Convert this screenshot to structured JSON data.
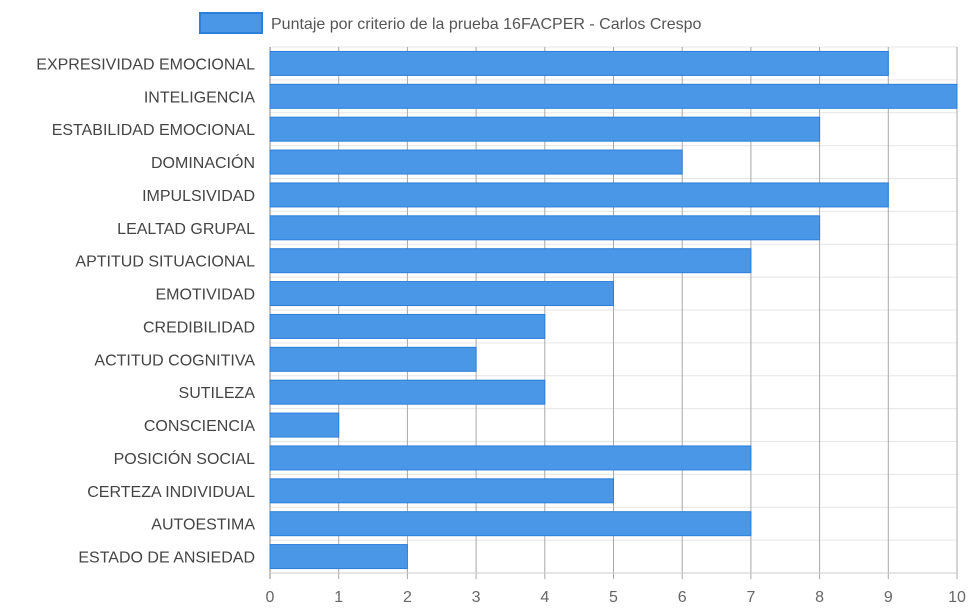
{
  "chart_data": {
    "type": "bar",
    "orientation": "horizontal",
    "categories": [
      "EXPRESIVIDAD EMOCIONAL",
      "INTELIGENCIA",
      "ESTABILIDAD EMOCIONAL",
      "DOMINACIÓN",
      "IMPULSIVIDAD",
      "LEALTAD GRUPAL",
      "APTITUD SITUACIONAL",
      "EMOTIVIDAD",
      "CREDIBILIDAD",
      "ACTITUD COGNITIVA",
      "SUTILEZA",
      "CONSCIENCIA",
      "POSICIÓN SOCIAL",
      "CERTEZA INDIVIDUAL",
      "AUTOESTIMA",
      "ESTADO DE ANSIEDAD"
    ],
    "series": [
      {
        "name": "Puntaje por criterio de la prueba 16FACPER - Carlos Crespo",
        "values": [
          9,
          10,
          8,
          6,
          9,
          8,
          7,
          5,
          4,
          3,
          4,
          1,
          7,
          5,
          7,
          2
        ],
        "color": "#4a97e8",
        "border_color": "#2b7fd9"
      }
    ],
    "xlim": [
      0,
      10
    ],
    "x_ticks": [
      "0",
      "1",
      "2",
      "3",
      "4",
      "5",
      "6",
      "7",
      "8",
      "9",
      "10"
    ],
    "grid": true,
    "legend_position": "top"
  }
}
